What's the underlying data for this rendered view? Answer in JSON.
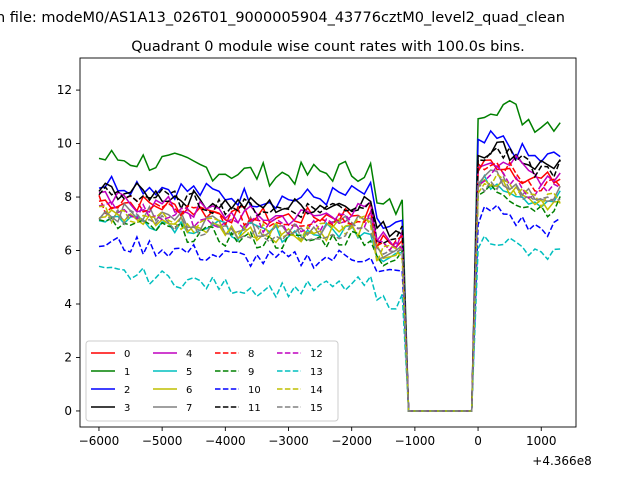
{
  "figure": {
    "suptitle": "n file: modeM0/AS1A13_026T01_9000005904_43776cztM0_level2_quad_clean",
    "offset_label": "+4.366e8"
  },
  "chart_data": {
    "type": "line",
    "title": "Quadrant 0 module wise count rates with 100.0s bins.",
    "xlabel": "",
    "ylabel": "",
    "x_offset": 436600000,
    "xlim": [
      -6300,
      1550
    ],
    "ylim": [
      -0.6,
      13.2
    ],
    "x_ticks": [
      -6000,
      -5000,
      -4000,
      -3000,
      -2000,
      -1000,
      0,
      1000
    ],
    "x_tick_labels": [
      "−6000",
      "−5000",
      "−4000",
      "−3000",
      "−2000",
      "−1000",
      "0",
      "1000"
    ],
    "y_ticks": [
      0,
      2,
      4,
      6,
      8,
      10,
      12
    ],
    "y_tick_labels": [
      "0",
      "2",
      "4",
      "6",
      "8",
      "10",
      "12"
    ],
    "grid": false,
    "legend": {
      "placement": "lower-left",
      "columns": 4
    },
    "segments": [
      {
        "x_start": -6000,
        "x_end": -1700
      },
      {
        "x_start": -1600,
        "x_end": -1200
      },
      {
        "x_start": -1100,
        "x_end": -100
      },
      {
        "x_start": 0,
        "x_end": 1300
      }
    ],
    "series": [
      {
        "name": "0",
        "color": "#ff0000",
        "dash": "solid",
        "seg_levels": [
          7.6,
          6.3,
          0.0,
          8.8
        ],
        "amplitude": 0.35
      },
      {
        "name": "1",
        "color": "#008000",
        "dash": "solid",
        "seg_levels": [
          9.2,
          7.6,
          0.0,
          11.0
        ],
        "amplitude": 0.45
      },
      {
        "name": "2",
        "color": "#0000ff",
        "dash": "solid",
        "seg_levels": [
          8.3,
          6.9,
          0.0,
          9.6
        ],
        "amplitude": 0.4
      },
      {
        "name": "3",
        "color": "#000000",
        "dash": "solid",
        "seg_levels": [
          8.0,
          6.8,
          0.0,
          9.4
        ],
        "amplitude": 0.35
      },
      {
        "name": "4",
        "color": "#bf00bf",
        "dash": "solid",
        "seg_levels": [
          7.6,
          6.4,
          0.0,
          9.0
        ],
        "amplitude": 0.4
      },
      {
        "name": "5",
        "color": "#00bfbf",
        "dash": "solid",
        "seg_levels": [
          7.0,
          5.9,
          0.0,
          8.1
        ],
        "amplitude": 0.35
      },
      {
        "name": "6",
        "color": "#bfbf00",
        "dash": "solid",
        "seg_levels": [
          7.0,
          5.9,
          0.0,
          8.0
        ],
        "amplitude": 0.35
      },
      {
        "name": "7",
        "color": "#808080",
        "dash": "solid",
        "seg_levels": [
          7.2,
          6.0,
          0.0,
          8.2
        ],
        "amplitude": 0.35
      },
      {
        "name": "8",
        "color": "#ff0000",
        "dash": "dashed",
        "seg_levels": [
          7.5,
          6.3,
          0.0,
          8.7
        ],
        "amplitude": 0.35
      },
      {
        "name": "9",
        "color": "#008000",
        "dash": "dashed",
        "seg_levels": [
          6.7,
          5.7,
          0.0,
          7.8
        ],
        "amplitude": 0.35
      },
      {
        "name": "10",
        "color": "#0000ff",
        "dash": "dashed",
        "seg_levels": [
          6.0,
          5.1,
          0.0,
          7.0
        ],
        "amplitude": 0.35
      },
      {
        "name": "11",
        "color": "#000000",
        "dash": "dashed",
        "seg_levels": [
          7.9,
          6.6,
          0.0,
          9.2
        ],
        "amplitude": 0.35
      },
      {
        "name": "12",
        "color": "#bf00bf",
        "dash": "dashed",
        "seg_levels": [
          7.3,
          6.1,
          0.0,
          8.4
        ],
        "amplitude": 0.35
      },
      {
        "name": "13",
        "color": "#00bfbf",
        "dash": "dashed",
        "seg_levels": [
          4.9,
          4.1,
          0.0,
          6.0
        ],
        "amplitude": 0.3
      },
      {
        "name": "14",
        "color": "#bfbf00",
        "dash": "dashed",
        "seg_levels": [
          7.1,
          5.9,
          0.0,
          8.1
        ],
        "amplitude": 0.35
      },
      {
        "name": "15",
        "color": "#808080",
        "dash": "dashed",
        "seg_levels": [
          7.0,
          5.8,
          0.0,
          8.0
        ],
        "amplitude": 0.35
      }
    ]
  }
}
